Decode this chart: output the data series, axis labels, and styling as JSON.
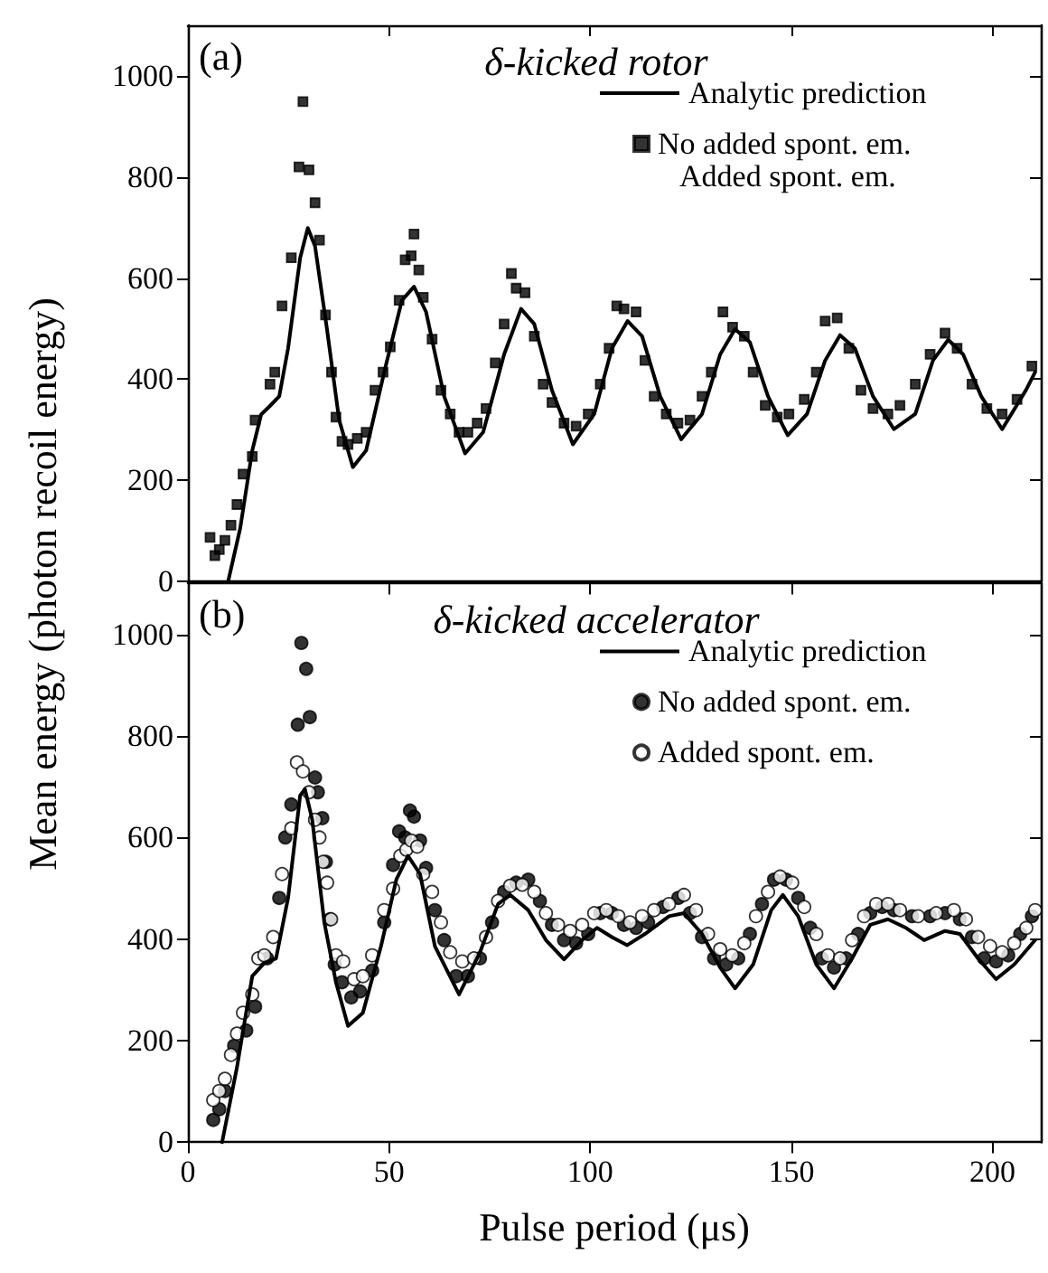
{
  "chart_data": [
    {
      "type": "scatter",
      "title": "δ-kicked rotor",
      "ylabel": "Mean energy (photon recoil energy)",
      "annotations": [
        "(a)",
        "Added spont. em."
      ],
      "xlim": [
        0,
        212
      ],
      "xticks": [
        0,
        50,
        100,
        150,
        200
      ],
      "ylim": [
        0,
        1100
      ],
      "yticks": [
        0,
        200,
        400,
        600,
        800,
        1000
      ],
      "tick_labels": "y",
      "legend": "top right",
      "grid": false,
      "series": [
        {
          "name": "Analytic prediction",
          "type": "line",
          "color": "#000000",
          "marker": "none",
          "line_style": "solid",
          "x": [
            10,
            13,
            16,
            18.2,
            20.4,
            22.7,
            24.9,
            27.9,
            29.8,
            31.6,
            34.6,
            37.6,
            41.0,
            44.3,
            48.8,
            53.2,
            56.2,
            59.2,
            63.7,
            68.9,
            73.4,
            78.6,
            82.8,
            86.1,
            90.5,
            95.7,
            101.0,
            105.4,
            109.3,
            112.9,
            117.4,
            122.6,
            127.8,
            132.3,
            136.0,
            139.7,
            144.2,
            149.1,
            153.9,
            158.4,
            162.1,
            165.8,
            170.3,
            175.5,
            180.8,
            185.2,
            189.0,
            192.7,
            197.2,
            202.4,
            208.3,
            210.6
          ],
          "values": [
            0,
            105,
            259,
            330,
            347,
            366,
            461,
            640,
            699,
            663,
            497,
            319,
            226,
            259,
            414,
            556,
            583,
            533,
            366,
            253,
            295,
            449,
            539,
            509,
            378,
            271,
            331,
            461,
            515,
            485,
            366,
            281,
            331,
            449,
            499,
            473,
            366,
            289,
            331,
            437,
            487,
            461,
            366,
            301,
            331,
            437,
            478,
            449,
            366,
            301,
            378,
            414
          ]
        },
        {
          "name": "No added spont. em.",
          "color": "#000000",
          "marker": "square",
          "x": [
            5.5,
            6.7,
            7.8,
            9.2,
            10.7,
            12.2,
            13.7,
            16,
            16.7,
            20.4,
            21.6,
            23.4,
            25.7,
            27.6,
            28.6,
            30.1,
            31.6,
            32.7,
            34.2,
            35.7,
            36.8,
            38.3,
            39.8,
            42.1,
            44.3,
            46.5,
            48.5,
            50.3,
            52.5,
            54,
            55.5,
            56.2,
            57.4,
            58.5,
            60.7,
            62.9,
            65.2,
            67.4,
            69.6,
            71.9,
            74.1,
            76.4,
            78.6,
            80.4,
            81.6,
            83.8,
            86.1,
            88.3,
            90.5,
            93.5,
            96.5,
            99.5,
            102.5,
            104.7,
            106.6,
            108.4,
            111.4,
            113.6,
            115.9,
            118.9,
            121.8,
            124.8,
            127.8,
            130.1,
            133,
            135.4,
            138.3,
            140.5,
            143.5,
            146.5,
            149.4,
            153.2,
            156.2,
            158.4,
            161.4,
            164.3,
            167.3,
            170.3,
            174,
            177,
            180.8,
            184.5,
            188.2,
            191.2,
            194.9,
            198.6,
            202.4,
            206.1,
            209.8
          ],
          "values": [
            87,
            51,
            63,
            81,
            111,
            152,
            212,
            247,
            319,
            390,
            414,
            545,
            640,
            820,
            949,
            814,
            749,
            675,
            527,
            414,
            325,
            277,
            271,
            283,
            295,
            378,
            414,
            464,
            556,
            636,
            644,
            687,
            616,
            562,
            479,
            378,
            331,
            295,
            295,
            313,
            342,
            432,
            509,
            609,
            580,
            571,
            485,
            390,
            354,
            313,
            307,
            331,
            390,
            461,
            545,
            539,
            533,
            437,
            366,
            331,
            313,
            319,
            366,
            414,
            533,
            503,
            485,
            414,
            348,
            325,
            331,
            360,
            414,
            515,
            521,
            461,
            378,
            342,
            331,
            348,
            390,
            449,
            491,
            461,
            390,
            342,
            331,
            360,
            426
          ]
        }
      ]
    },
    {
      "type": "scatter",
      "title": "δ-kicked accelerator",
      "xlabel": "Pulse period (μs)",
      "annotations": [
        "(b)"
      ],
      "xlim": [
        0,
        212
      ],
      "xticks": [
        0,
        50,
        100,
        150,
        200
      ],
      "ylim": [
        0,
        1100
      ],
      "yticks": [
        0,
        200,
        400,
        600,
        800,
        1000
      ],
      "legend": "top right",
      "grid": false,
      "series": [
        {
          "name": "Analytic prediction",
          "type": "line",
          "color": "#000000",
          "marker": "none",
          "line_style": "solid",
          "x": [
            8.5,
            12.2,
            16,
            19,
            21.9,
            24.9,
            27.9,
            29.1,
            30.9,
            33.9,
            36.8,
            39.8,
            43.5,
            48,
            51.8,
            54.7,
            57.7,
            61.4,
            67.4,
            72.6,
            77.1,
            80.1,
            84.6,
            89,
            93.5,
            98,
            101.7,
            105.4,
            109.2,
            113.6,
            119.6,
            123.3,
            127.8,
            132.3,
            136,
            140.5,
            145,
            147.9,
            151.7,
            156.2,
            160.6,
            165.1,
            169.6,
            174,
            178.5,
            183,
            188.2,
            191.9,
            196.4,
            200.9,
            205.4,
            210.6
          ],
          "values": [
            0,
            148,
            327,
            353,
            362,
            481,
            683,
            695,
            635,
            433,
            315,
            229,
            255,
            386,
            517,
            564,
            528,
            386,
            291,
            374,
            469,
            487,
            457,
            398,
            360,
            398,
            422,
            404,
            388,
            410,
            445,
            451,
            410,
            344,
            303,
            350,
            457,
            487,
            445,
            350,
            303,
            362,
            428,
            439,
            422,
            398,
            416,
            410,
            362,
            321,
            350,
            398
          ]
        },
        {
          "name": "No added spont. em.",
          "color": "#000000",
          "marker": "circle",
          "x": [
            6.3,
            7.8,
            9.2,
            11.5,
            14.5,
            16.7,
            19.7,
            22.7,
            24.2,
            25.7,
            27.3,
            28.2,
            29.4,
            30.3,
            31.6,
            32.3,
            33.4,
            34.3,
            35.3,
            36.5,
            38.3,
            40.6,
            42.8,
            45.8,
            48.8,
            51,
            52.5,
            54,
            55.2,
            56.2,
            57.7,
            59.2,
            61.4,
            63.7,
            66.7,
            69.6,
            72.6,
            75.6,
            78.6,
            81.6,
            84.6,
            87.5,
            90.5,
            93.5,
            96.5,
            99.5,
            102.5,
            105.4,
            108.4,
            111.4,
            114.4,
            118.1,
            121.9,
            124.8,
            127.8,
            130.8,
            133.8,
            136.8,
            139.7,
            142.7,
            145.7,
            148.7,
            151.7,
            154.7,
            157.6,
            160.6,
            163.6,
            166.6,
            169.6,
            172.6,
            175.5,
            180,
            184.5,
            188.2,
            191.9,
            194.9,
            197.9,
            200.9,
            203.9,
            206.9,
            209.8
          ],
          "values": [
            44,
            65,
            101,
            190,
            220,
            267,
            362,
            481,
            600,
            665,
            822,
            983,
            932,
            837,
            718,
            689,
            638,
            552,
            439,
            350,
            315,
            285,
            297,
            338,
            433,
            546,
            612,
            600,
            653,
            641,
            594,
            540,
            457,
            398,
            327,
            327,
            362,
            433,
            493,
            511,
            517,
            475,
            428,
            398,
            392,
            410,
            451,
            451,
            428,
            422,
            433,
            463,
            481,
            451,
            404,
            362,
            350,
            362,
            410,
            469,
            517,
            517,
            481,
            422,
            362,
            344,
            362,
            410,
            451,
            463,
            457,
            445,
            445,
            451,
            439,
            404,
            362,
            356,
            368,
            410,
            445
          ]
        },
        {
          "name": "Added spont. em.",
          "color": "#ffffff",
          "marker": "circle",
          "x": [
            6.3,
            7.8,
            9.2,
            10.7,
            12.2,
            13.7,
            16,
            17.5,
            19,
            21.2,
            23.4,
            25.7,
            27.1,
            28.6,
            30.1,
            31.6,
            32.7,
            33.6,
            34.6,
            35.6,
            36.8,
            38.6,
            41.3,
            43.5,
            45.8,
            48.8,
            51,
            52.8,
            54.3,
            55.5,
            57,
            58.5,
            60.7,
            62.9,
            65.2,
            68.2,
            71.1,
            74.1,
            77.1,
            80.1,
            83.1,
            86.1,
            89,
            92,
            95,
            98,
            101,
            104,
            107,
            109.9,
            112.9,
            115.9,
            119.6,
            123.3,
            126.3,
            129.3,
            132.3,
            135.3,
            138.3,
            141.2,
            144.2,
            147.2,
            150.2,
            153.2,
            156.2,
            159.1,
            162.1,
            165.1,
            168.1,
            171.1,
            174,
            177,
            181.5,
            186,
            190.4,
            193.4,
            196.4,
            199.4,
            202.4,
            205.4,
            208.4,
            210.6
          ],
          "values": [
            83,
            101,
            125,
            172,
            214,
            255,
            291,
            362,
            368,
            404,
            528,
            618,
            748,
            730,
            689,
            635,
            600,
            552,
            511,
            439,
            368,
            356,
            321,
            327,
            368,
            457,
            499,
            564,
            576,
            594,
            582,
            528,
            493,
            433,
            374,
            356,
            362,
            404,
            475,
            505,
            507,
            493,
            451,
            428,
            416,
            428,
            451,
            457,
            445,
            433,
            445,
            457,
            469,
            487,
            457,
            410,
            380,
            368,
            392,
            445,
            493,
            523,
            511,
            463,
            410,
            368,
            362,
            398,
            445,
            469,
            469,
            457,
            445,
            451,
            457,
            439,
            404,
            386,
            374,
            392,
            422,
            457
          ]
        }
      ]
    }
  ]
}
